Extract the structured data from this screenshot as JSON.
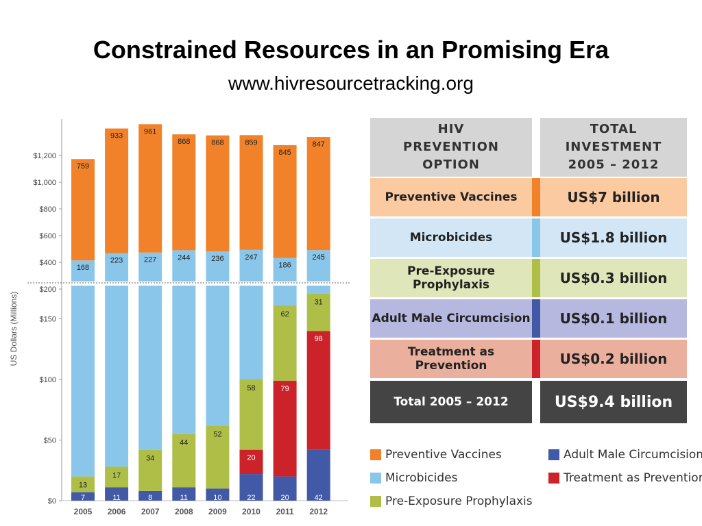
{
  "title": "Constrained Resources in an Promising Era",
  "subtitle": "www.hivresourcetracking.org",
  "colors": {
    "vaccines": "#f1822a",
    "microbicides": "#8ac6ea",
    "prep": "#aebe47",
    "circumcision": "#4159a7",
    "treatment": "#cc2229"
  },
  "chart_data": {
    "type": "bar",
    "stacked": true,
    "broken_axis": true,
    "categories": [
      "2005",
      "2006",
      "2007",
      "2008",
      "2009",
      "2010",
      "2011",
      "2012"
    ],
    "ylabel": "US Dollars (Millions)",
    "y_ticks_upper": [
      "$1,200",
      "$1,000",
      "$800",
      "$600",
      "$400",
      "$200"
    ],
    "y_ticks_lower": [
      "$150",
      "$100",
      "$50",
      "$0"
    ],
    "ylim_lower": [
      0,
      150
    ],
    "ylim_upper": [
      0,
      1200
    ],
    "series": [
      {
        "name": "Adult Male Circumcision",
        "values": [
          7,
          11,
          8,
          11,
          10,
          22,
          20,
          42
        ]
      },
      {
        "name": "Treatment as Prevention",
        "values": [
          0,
          0,
          0,
          0,
          0,
          20,
          79,
          98
        ]
      },
      {
        "name": "Pre-Exposure Prophylaxis",
        "values": [
          13,
          17,
          34,
          44,
          52,
          58,
          62,
          31
        ]
      },
      {
        "name": "Microbicides",
        "values": [
          168,
          223,
          227,
          244,
          236,
          247,
          186,
          245
        ]
      },
      {
        "name": "Preventive Vaccines",
        "values": [
          759,
          933,
          961,
          868,
          868,
          859,
          845,
          847
        ]
      }
    ]
  },
  "table": {
    "header_col1": "HIV PREVENTION OPTION",
    "header_col2": "TOTAL INVESTMENT 2005 – 2012",
    "rows": [
      {
        "label": "Preventive Vaccines",
        "value": "US$7 billion",
        "bg": "#fbcaa1",
        "accent": "#f1822a"
      },
      {
        "label": "Microbicides",
        "value": "US$1.8 billion",
        "bg": "#d2e6f5",
        "accent": "#8ac6ea"
      },
      {
        "label": "Pre-Exposure Prophylaxis",
        "value": "US$0.3 billion",
        "bg": "#dfe6b9",
        "accent": "#aebe47"
      },
      {
        "label": "Adult Male Circumcision",
        "value": "US$0.1 billion",
        "bg": "#b6b8e0",
        "accent": "#4159a7"
      },
      {
        "label": "Treatment as Prevention",
        "value": "US$0.2 billion",
        "bg": "#eab09d",
        "accent": "#cc2229"
      }
    ],
    "total_label": "Total 2005 – 2012",
    "total_value": "US$9.4 billion"
  },
  "legend": [
    {
      "label": "Preventive Vaccines",
      "color": "#f1822a"
    },
    {
      "label": "Microbicides",
      "color": "#8ac6ea"
    },
    {
      "label": "Pre-Exposure Prophylaxis",
      "color": "#aebe47"
    },
    {
      "label": "Adult Male Circumcision",
      "color": "#4159a7"
    },
    {
      "label": "Treatment as Prevention*",
      "color": "#cc2229"
    }
  ]
}
